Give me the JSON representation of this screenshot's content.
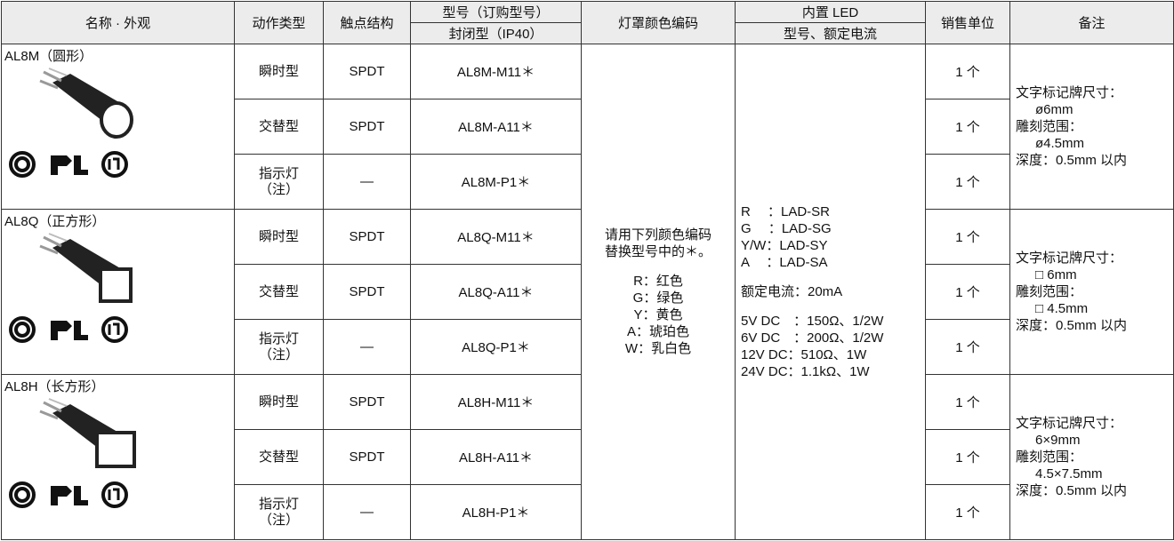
{
  "header": {
    "row1": [
      "名称 · 外观",
      "动作类型",
      "触点结构",
      "型号（订购型号）",
      "灯罩颜色编码",
      "内置 LED",
      "销售单位",
      "备注"
    ],
    "row2": [
      "封闭型（IP40）",
      "型号、额定电流"
    ]
  },
  "groups": [
    {
      "name": "AL8M（圆形）",
      "shape": "round",
      "rows": [
        {
          "action": "瞬时型",
          "contact": "SPDT",
          "model": "AL8M-M11＊",
          "unit": "1 个"
        },
        {
          "action": "交替型",
          "contact": "SPDT",
          "model": "AL8M-A11＊",
          "unit": "1 个"
        },
        {
          "action": "指示灯\n（注）",
          "contact": "—",
          "model": "AL8M-P1＊",
          "unit": "1 个"
        }
      ],
      "notes": [
        "文字标记牌尺寸：",
        "ø6mm",
        "雕刻范围：",
        "ø4.5mm",
        "深度：0.5mm 以内"
      ]
    },
    {
      "name": "AL8Q（正方形）",
      "shape": "square",
      "rows": [
        {
          "action": "瞬时型",
          "contact": "SPDT",
          "model": "AL8Q-M11＊",
          "unit": "1 个"
        },
        {
          "action": "交替型",
          "contact": "SPDT",
          "model": "AL8Q-A11＊",
          "unit": "1 个"
        },
        {
          "action": "指示灯\n（注）",
          "contact": "—",
          "model": "AL8Q-P1＊",
          "unit": "1 个"
        }
      ],
      "notes": [
        "文字标记牌尺寸：",
        "□ 6mm",
        "雕刻范围：",
        "□ 4.5mm",
        "深度：0.5mm 以内"
      ]
    },
    {
      "name": "AL8H（长方形）",
      "shape": "rect",
      "rows": [
        {
          "action": "瞬时型",
          "contact": "SPDT",
          "model": "AL8H-M11＊",
          "unit": "1 个"
        },
        {
          "action": "交替型",
          "contact": "SPDT",
          "model": "AL8H-A11＊",
          "unit": "1 个"
        },
        {
          "action": "指示灯\n（注）",
          "contact": "—",
          "model": "AL8H-P1＊",
          "unit": "1 个"
        }
      ],
      "notes": [
        "文字标记牌尺寸：",
        "6×9mm",
        "雕刻范围：",
        "4.5×7.5mm",
        "深度：0.5mm 以内"
      ]
    }
  ],
  "color_code": [
    [
      "请用下列颜色编码",
      "替换型号中的＊。"
    ],
    [
      "R：红色",
      "G：绿色",
      "Y：黄色",
      "A：琥珀色",
      "W：乳白色"
    ]
  ],
  "led": [
    [
      "R　 ：LAD-SR",
      "G　 ：LAD-SG",
      "Y/W：LAD-SY",
      "A　 ：LAD-SA"
    ],
    [
      "额定电流：20mA"
    ],
    [
      "5V DC　：150Ω、1/2W",
      "6V DC　：200Ω、1/2W",
      "12V DC：510Ω、1W",
      "24V DC：1.1kΩ、1W"
    ]
  ]
}
